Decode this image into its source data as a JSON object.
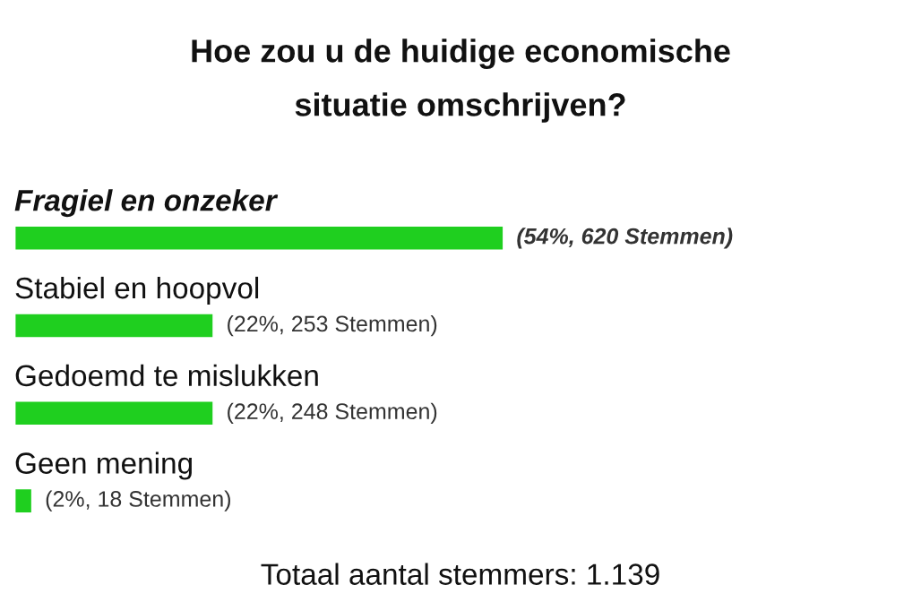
{
  "chart_data": {
    "type": "bar",
    "orientation": "horizontal",
    "title": "Hoe zou u de huidige economische situatie omschrijven?",
    "categories": [
      "Fragiel en onzeker",
      "Stabiel en hoopvol",
      "Gedoemd te mislukken",
      "Geen mening"
    ],
    "values": [
      54,
      22,
      22,
      2
    ],
    "value_labels": [
      "(54%, 620 Stemmen)",
      "(22%, 253 Stemmen)",
      "(22%, 248 Stemmen)",
      "(2%, 18 Stemmen)"
    ],
    "color": "#1fcf1f",
    "annotations": [
      "Totaal aantal stemmers: 1.139"
    ]
  }
}
